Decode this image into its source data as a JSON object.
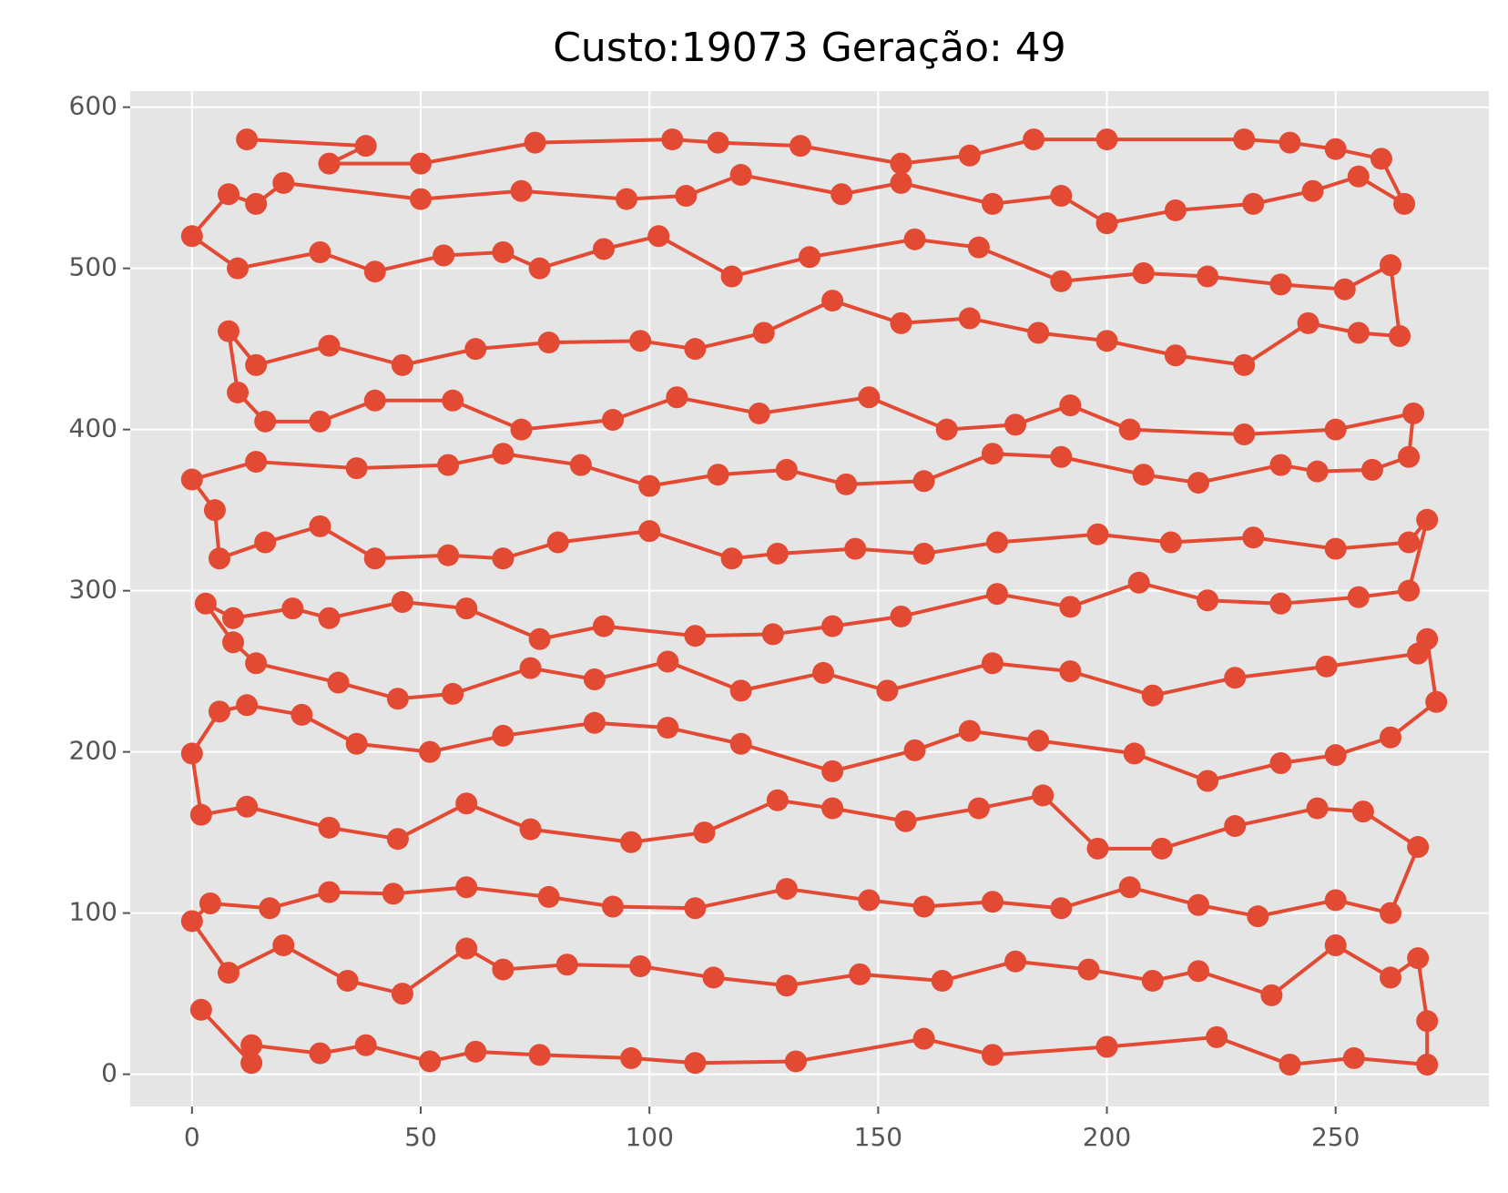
{
  "chart_data": {
    "type": "line",
    "title": "Custo:19073 Geração: 49",
    "color": "#e24a33",
    "marker": true,
    "grid": true,
    "x": [
      12,
      38,
      30,
      50,
      75,
      105,
      115,
      133,
      155,
      170,
      184,
      200,
      230,
      240,
      250,
      260,
      265,
      255,
      245,
      232,
      215,
      200,
      190,
      175,
      155,
      142,
      120,
      108,
      95,
      72,
      50,
      20,
      14,
      8,
      0,
      10,
      28,
      40,
      55,
      68,
      76,
      90,
      102,
      118,
      135,
      158,
      172,
      190,
      208,
      222,
      238,
      252,
      262,
      264,
      255,
      244,
      230,
      215,
      200,
      185,
      170,
      155,
      140,
      125,
      110,
      98,
      78,
      62,
      46,
      30,
      14,
      8,
      10,
      16,
      28,
      40,
      57,
      72,
      92,
      106,
      124,
      148,
      165,
      180,
      192,
      205,
      230,
      250,
      267,
      266,
      258,
      246,
      238,
      220,
      208,
      190,
      175,
      160,
      143,
      130,
      115,
      100,
      85,
      68,
      56,
      36,
      14,
      0,
      5,
      6,
      16,
      28,
      40,
      56,
      68,
      80,
      100,
      118,
      128,
      145,
      160,
      176,
      198,
      214,
      232,
      250,
      266,
      270,
      266,
      255,
      238,
      222,
      207,
      192,
      176,
      155,
      140,
      127,
      110,
      90,
      76,
      60,
      46,
      30,
      22,
      9,
      3,
      9,
      14,
      32,
      45,
      57,
      74,
      88,
      104,
      120,
      138,
      152,
      175,
      192,
      210,
      228,
      248,
      268,
      270,
      272,
      262,
      250,
      238,
      222,
      206,
      185,
      170,
      158,
      140,
      120,
      104,
      88,
      68,
      52,
      36,
      24,
      12,
      6,
      0,
      2,
      12,
      30,
      45,
      60,
      74,
      96,
      112,
      128,
      140,
      156,
      172,
      186,
      198,
      212,
      228,
      246,
      256,
      268,
      262,
      250,
      233,
      220,
      205,
      190,
      175,
      160,
      148,
      130,
      110,
      92,
      78,
      60,
      44,
      30,
      17,
      4,
      0,
      8,
      20,
      34,
      46,
      60,
      68,
      82,
      98,
      114,
      130,
      146,
      164,
      180,
      196,
      210,
      220,
      236,
      250,
      262,
      268,
      270,
      270,
      254,
      240,
      224,
      200,
      175,
      160,
      132,
      110,
      96,
      76,
      62,
      52,
      38,
      28,
      13,
      13,
      2
    ],
    "values": [
      580,
      576,
      565,
      565,
      578,
      580,
      578,
      576,
      565,
      570,
      580,
      580,
      580,
      578,
      574,
      568,
      540,
      557,
      548,
      540,
      536,
      528,
      545,
      540,
      553,
      546,
      558,
      545,
      543,
      548,
      543,
      553,
      540,
      546,
      520,
      500,
      510,
      498,
      508,
      510,
      500,
      512,
      520,
      495,
      507,
      518,
      513,
      492,
      497,
      495,
      490,
      487,
      502,
      458,
      460,
      466,
      440,
      446,
      455,
      460,
      469,
      466,
      480,
      460,
      450,
      455,
      454,
      450,
      440,
      452,
      440,
      461,
      423,
      405,
      405,
      418,
      418,
      400,
      406,
      420,
      410,
      420,
      400,
      403,
      415,
      400,
      397,
      400,
      410,
      383,
      375,
      374,
      378,
      367,
      372,
      383,
      385,
      368,
      366,
      375,
      372,
      365,
      378,
      385,
      378,
      376,
      380,
      369,
      350,
      320,
      330,
      340,
      320,
      322,
      320,
      330,
      337,
      320,
      323,
      326,
      323,
      330,
      335,
      330,
      333,
      326,
      330,
      344,
      300,
      296,
      292,
      294,
      305,
      290,
      298,
      284,
      278,
      273,
      272,
      278,
      270,
      289,
      293,
      283,
      289,
      283,
      292,
      268,
      255,
      243,
      233,
      236,
      252,
      245,
      256,
      238,
      249,
      238,
      255,
      250,
      235,
      246,
      253,
      261,
      270,
      231,
      209,
      198,
      193,
      182,
      199,
      207,
      213,
      201,
      188,
      205,
      215,
      218,
      210,
      200,
      205,
      223,
      229,
      225,
      199,
      161,
      166,
      153,
      146,
      168,
      152,
      144,
      150,
      170,
      165,
      157,
      165,
      173,
      140,
      140,
      154,
      165,
      163,
      141,
      100,
      108,
      98,
      105,
      116,
      103,
      107,
      104,
      108,
      115,
      103,
      104,
      110,
      116,
      112,
      113,
      103,
      106,
      95,
      63,
      80,
      58,
      50,
      78,
      65,
      68,
      67,
      60,
      55,
      62,
      58,
      70,
      65,
      58,
      64,
      49,
      80,
      60,
      72,
      33,
      6,
      10,
      6,
      23,
      17,
      12,
      22,
      8,
      7,
      10,
      12,
      14,
      8,
      18,
      13,
      18,
      7,
      40
    ],
    "xlim": [
      -13.5,
      283.5
    ],
    "ylim": [
      -20,
      610
    ],
    "xticks": [
      0,
      50,
      100,
      150,
      200,
      250
    ],
    "yticks": [
      0,
      100,
      200,
      300,
      400,
      500,
      600
    ]
  }
}
